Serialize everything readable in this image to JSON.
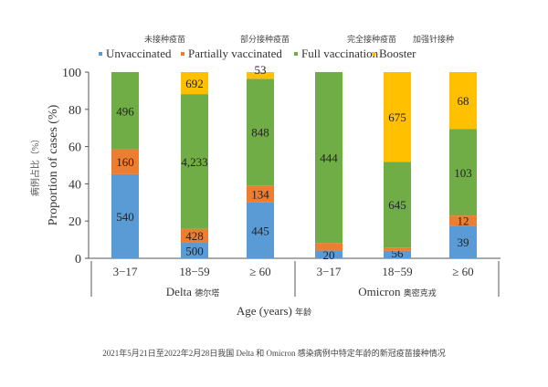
{
  "chart_data": {
    "type": "bar",
    "stacked": true,
    "normalized": true,
    "ylabel": "Proportion of cases (%)",
    "ylabel_cn": "病例占比（%）",
    "xlabel": "Age (years)",
    "xlabel_cn": "年龄",
    "ylim": [
      0,
      100
    ],
    "yticks": [
      "0",
      "20",
      "40",
      "60",
      "80",
      "100"
    ],
    "grid": false,
    "legend_position": "top",
    "groups": [
      {
        "name": "Delta",
        "name_cn": "德尔塔",
        "categories": [
          "3−17",
          "18−59",
          "≥ 60"
        ]
      },
      {
        "name": "Omicron",
        "name_cn": "奥密克戎",
        "categories": [
          "3−17",
          "18−59",
          "≥ 60"
        ]
      }
    ],
    "series": [
      {
        "name": "Unvaccinated",
        "name_cn": "未接种疫苗",
        "color": "#5b9bd5",
        "values": [
          540,
          500,
          445,
          20,
          56,
          39
        ]
      },
      {
        "name": "Partially vaccinated",
        "name_cn": "部分接种疫苗",
        "color": "#ed7d31",
        "values": [
          160,
          428,
          134,
          20,
          25,
          12
        ]
      },
      {
        "name": "Full vaccination",
        "name_cn": "完全接种疫苗",
        "color": "#70ad47",
        "values": [
          496,
          4233,
          848,
          444,
          645,
          103
        ]
      },
      {
        "name": "Booster",
        "name_cn": "加强针接种",
        "color": "#ffc000",
        "values": [
          0,
          692,
          53,
          0,
          675,
          68
        ]
      }
    ],
    "value_labels": [
      [
        "540",
        "500",
        "445",
        "20",
        "56",
        "39"
      ],
      [
        "160",
        "428",
        "134",
        "20",
        "25",
        "12"
      ],
      [
        "496",
        "4,233",
        "848",
        "444",
        "645",
        "103"
      ],
      [
        "",
        "692",
        "53",
        "",
        "675",
        "68"
      ]
    ]
  },
  "caption": "2021年5月21日至2022年2月28日我国 Delta 和 Omicron 感染病例中特定年龄的新冠疫苗接种情况"
}
